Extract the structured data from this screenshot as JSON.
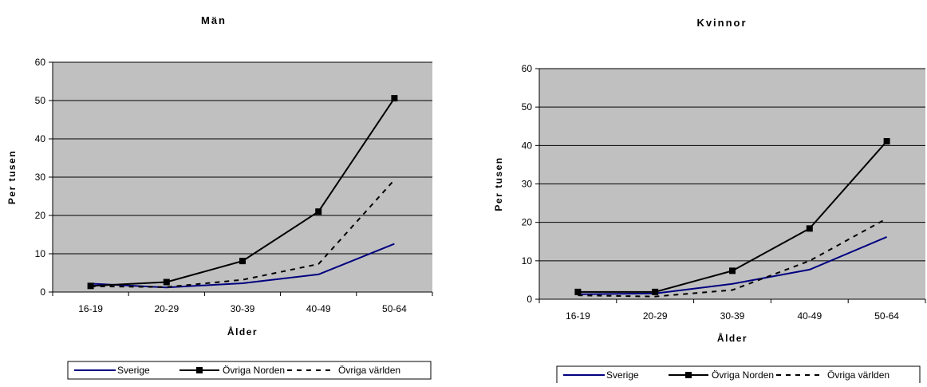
{
  "colors": {
    "plot_bg": "#c0c0c0",
    "grid": "#000000",
    "sverige": "#000080",
    "ovriga_norden": "#000000",
    "ovriga_varlden": "#000000"
  },
  "chart_data": [
    {
      "type": "line",
      "title": "Män",
      "xlabel": "Ålder",
      "ylabel": "Per tusen",
      "categories": [
        "16-19",
        "20-29",
        "30-39",
        "40-49",
        "50-64"
      ],
      "ylim": [
        0,
        60
      ],
      "yticks": [
        0,
        10,
        20,
        30,
        40,
        50,
        60
      ],
      "grid": true,
      "legend_position": "bottom",
      "series": [
        {
          "name": "Sverige",
          "values": [
            2.2,
            1.2,
            2.3,
            4.6,
            12.6
          ],
          "style": "solid",
          "marker": "none"
        },
        {
          "name": "Övriga Norden",
          "values": [
            1.6,
            2.6,
            8.1,
            21.0,
            50.6
          ],
          "style": "solid",
          "marker": "square"
        },
        {
          "name": "Övriga världen",
          "values": [
            1.5,
            1.3,
            3.2,
            7.3,
            29.3
          ],
          "style": "dashed",
          "marker": "none"
        }
      ]
    },
    {
      "type": "line",
      "title": "Kvinnor",
      "xlabel": "Ålder",
      "ylabel": "Per tusen",
      "categories": [
        "16-19",
        "20-29",
        "30-39",
        "40-49",
        "50-64"
      ],
      "ylim": [
        0,
        60
      ],
      "yticks": [
        0,
        10,
        20,
        30,
        40,
        50,
        60
      ],
      "grid": true,
      "legend_position": "bottom",
      "series": [
        {
          "name": "Sverige",
          "values": [
            1.3,
            1.5,
            4.0,
            7.7,
            16.2
          ],
          "style": "solid",
          "marker": "none"
        },
        {
          "name": "Övriga Norden",
          "values": [
            1.9,
            1.9,
            7.4,
            18.4,
            41.1
          ],
          "style": "solid",
          "marker": "square"
        },
        {
          "name": "Övriga världen",
          "values": [
            1.0,
            0.7,
            2.4,
            10.0,
            21.0
          ],
          "style": "dashed",
          "marker": "none"
        }
      ]
    }
  ]
}
